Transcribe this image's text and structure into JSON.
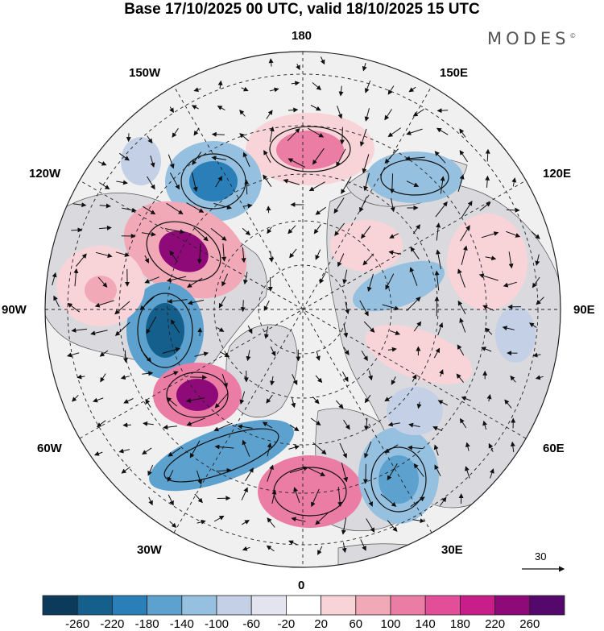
{
  "title": "Base 17/10/2025 00 UTC, valid 18/10/2025 15 UTC",
  "brand": "MODES",
  "brand_mark": "©",
  "map": {
    "projection": "north-polar-stereographic",
    "longitude_labels": {
      "lon_180": "180",
      "lon_150E": "150E",
      "lon_120E": "120E",
      "lon_90E": "90E",
      "lon_60E": "60E",
      "lon_30E": "30E",
      "lon_0": "0",
      "lon_30W": "30W",
      "lon_60W": "60W",
      "lon_90W": "90W",
      "lon_120W": "120W",
      "lon_150W": "150W"
    },
    "reference_vector_value": "30"
  },
  "colors": {
    "background": "#ffffff",
    "land": "#d9d9de",
    "ocean": "#f0f0f0",
    "scale": [
      "#0c3a5a",
      "#145f8c",
      "#2a7fb8",
      "#5da1cf",
      "#96c0df",
      "#c3d0e6",
      "#e4e4f1",
      "#ffffff",
      "#f8d4d8",
      "#f1a9b8",
      "#eb7ca3",
      "#e24e98",
      "#c81e8a",
      "#8d0a78",
      "#54086b"
    ]
  },
  "colorbar": {
    "labels": [
      "-260",
      "-220",
      "-180",
      "-140",
      "-100",
      "-60",
      "-20",
      "20",
      "60",
      "100",
      "140",
      "180",
      "220",
      "260"
    ]
  }
}
